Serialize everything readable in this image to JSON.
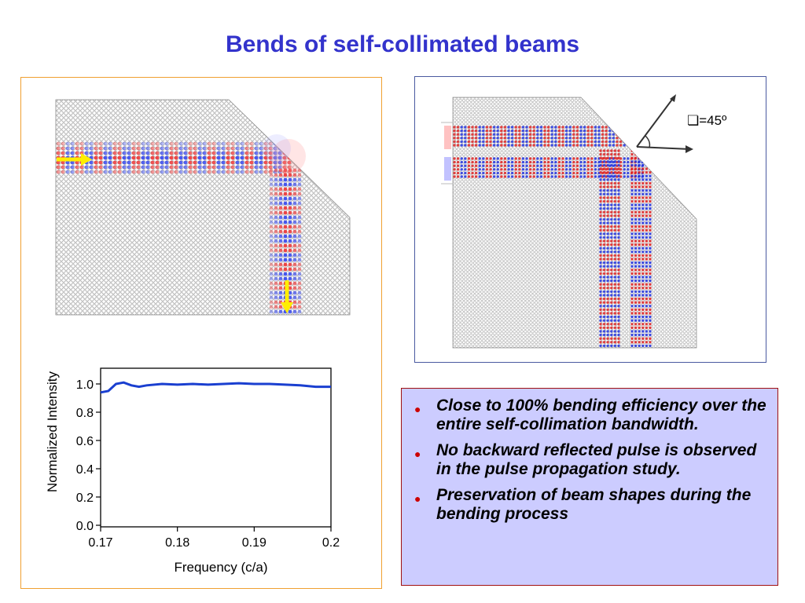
{
  "slide": {
    "title": "Bends of self-collimated beams",
    "angle_label": "❏=45º"
  },
  "bullets": [
    {
      "text": "Close to 100% bending efficiency over the entire self-collimation bandwidth."
    },
    {
      "text": "No backward reflected pulse is observed in the pulse propagation study."
    },
    {
      "text": "Preservation of beam shapes during the bending process"
    }
  ],
  "colors": {
    "title": "#3333cc",
    "left_border": "#f0a030",
    "right_border": "#4a5aa0",
    "textbox_bg": "#ccccff",
    "textbox_border": "#a01010",
    "arrow": "#ffee00",
    "curve": "#1a3fd0"
  },
  "chart_data": {
    "type": "line",
    "title": "",
    "xlabel": "Frequency (c/a)",
    "ylabel": "Normalized Intensity",
    "xlim": [
      0.17,
      0.2
    ],
    "ylim": [
      0.0,
      1.1
    ],
    "xticks": [
      "0.17",
      "0.18",
      "0.19",
      "0.2"
    ],
    "yticks": [
      "0.0",
      "0.2",
      "0.4",
      "0.6",
      "0.8",
      "1.0"
    ],
    "grid": false,
    "series": [
      {
        "x": [
          0.17,
          0.171,
          0.172,
          0.173,
          0.174,
          0.175,
          0.176,
          0.178,
          0.18,
          0.182,
          0.184,
          0.186,
          0.188,
          0.19,
          0.192,
          0.194,
          0.196,
          0.198,
          0.2
        ],
        "y": [
          0.94,
          0.95,
          1.0,
          1.01,
          0.99,
          0.98,
          0.99,
          1.0,
          0.995,
          1.0,
          0.995,
          1.0,
          1.005,
          1.0,
          1.0,
          0.995,
          0.99,
          0.98,
          0.98
        ]
      }
    ]
  }
}
